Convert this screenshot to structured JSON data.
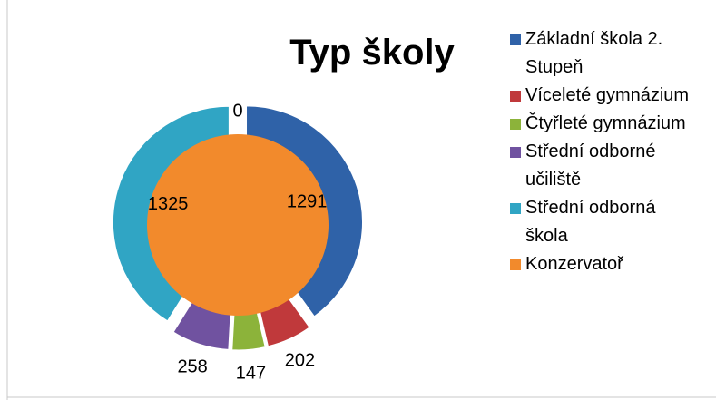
{
  "chart_data": {
    "type": "doughnut",
    "title": "Typ školy",
    "categories": [
      "Základní škola 2. Stupeň",
      "Víceleté gymnázium",
      "Čtyřleté gymnázium",
      "Střední odborné učiliště",
      "Střední odborná škola",
      "Konzervatoř"
    ],
    "values": [
      1291,
      202,
      147,
      258,
      1325,
      0
    ],
    "colors": [
      "#2f62a8",
      "#c0393b",
      "#8cb33a",
      "#7052a0",
      "#30a5c4",
      "#f28a2c"
    ],
    "legend": "right"
  }
}
